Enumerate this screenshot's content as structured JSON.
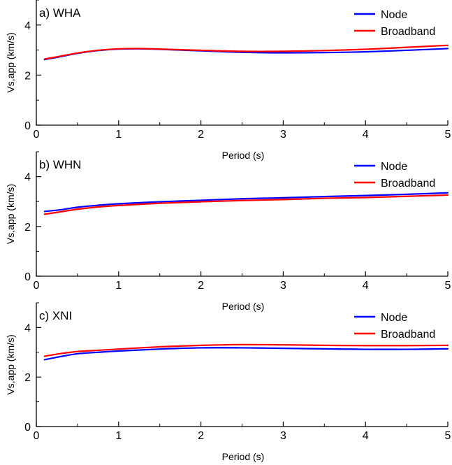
{
  "chart_data": [
    {
      "type": "line",
      "title": "a) WHA",
      "xlabel": "Period (s)",
      "ylabel": "Vs,app (km/s)",
      "xlim": [
        0,
        5
      ],
      "ylim": [
        0,
        5
      ],
      "xticks": [
        "0",
        "1",
        "2",
        "3",
        "4",
        "5"
      ],
      "yticks": [
        "0",
        "2",
        "4"
      ],
      "legend_position": "top-right",
      "series": [
        {
          "name": "Node",
          "color": "#0000ff",
          "x": [
            0.1,
            0.3,
            0.5,
            0.75,
            1.0,
            1.25,
            1.5,
            2.0,
            2.5,
            3.0,
            3.5,
            4.0,
            4.5,
            5.0
          ],
          "y": [
            2.62,
            2.74,
            2.87,
            2.98,
            3.04,
            3.05,
            3.03,
            2.97,
            2.91,
            2.89,
            2.9,
            2.93,
            2.99,
            3.06
          ]
        },
        {
          "name": "Broadband",
          "color": "#ff0000",
          "x": [
            0.1,
            0.3,
            0.5,
            0.75,
            1.0,
            1.25,
            1.5,
            2.0,
            2.5,
            3.0,
            3.5,
            4.0,
            4.5,
            5.0
          ],
          "y": [
            2.64,
            2.76,
            2.88,
            2.99,
            3.05,
            3.06,
            3.04,
            2.99,
            2.95,
            2.95,
            2.98,
            3.03,
            3.11,
            3.19
          ]
        }
      ]
    },
    {
      "type": "line",
      "title": "b) WHN",
      "xlabel": "Period (s)",
      "ylabel": "Vs,app (km/s)",
      "xlim": [
        0,
        5
      ],
      "ylim": [
        0,
        5
      ],
      "xticks": [
        "0",
        "1",
        "2",
        "3",
        "4",
        "5"
      ],
      "yticks": [
        "0",
        "2",
        "4"
      ],
      "legend_position": "top-right",
      "series": [
        {
          "name": "Node",
          "color": "#0000ff",
          "x": [
            0.1,
            0.3,
            0.5,
            0.75,
            1.0,
            1.5,
            2.0,
            2.5,
            3.0,
            3.5,
            4.0,
            4.5,
            5.0
          ],
          "y": [
            2.6,
            2.67,
            2.77,
            2.85,
            2.91,
            2.99,
            3.05,
            3.11,
            3.15,
            3.2,
            3.24,
            3.29,
            3.35
          ]
        },
        {
          "name": "Broadband",
          "color": "#ff0000",
          "x": [
            0.1,
            0.3,
            0.5,
            0.75,
            1.0,
            1.5,
            2.0,
            2.5,
            3.0,
            3.5,
            4.0,
            4.5,
            5.0
          ],
          "y": [
            2.49,
            2.59,
            2.69,
            2.78,
            2.84,
            2.93,
            2.99,
            3.04,
            3.08,
            3.13,
            3.16,
            3.21,
            3.26
          ]
        }
      ]
    },
    {
      "type": "line",
      "title": "c) XNI",
      "xlabel": "Period (s)",
      "ylabel": "Vs,app (km/s)",
      "xlim": [
        0,
        5
      ],
      "ylim": [
        0,
        5
      ],
      "xticks": [
        "0",
        "1",
        "2",
        "3",
        "4",
        "5"
      ],
      "yticks": [
        "0",
        "2",
        "4"
      ],
      "legend_position": "top-right",
      "series": [
        {
          "name": "Node",
          "color": "#0000ff",
          "x": [
            0.1,
            0.3,
            0.5,
            0.75,
            1.0,
            1.5,
            2.0,
            2.5,
            3.0,
            3.5,
            4.0,
            4.5,
            5.0
          ],
          "y": [
            2.7,
            2.83,
            2.94,
            3.0,
            3.05,
            3.13,
            3.18,
            3.18,
            3.16,
            3.14,
            3.12,
            3.12,
            3.14
          ]
        },
        {
          "name": "Broadband",
          "color": "#ff0000",
          "x": [
            0.1,
            0.3,
            0.5,
            0.75,
            1.0,
            1.5,
            2.0,
            2.5,
            3.0,
            3.5,
            4.0,
            4.5,
            5.0
          ],
          "y": [
            2.84,
            2.95,
            3.03,
            3.08,
            3.13,
            3.22,
            3.28,
            3.31,
            3.3,
            3.28,
            3.27,
            3.27,
            3.28
          ]
        }
      ]
    }
  ]
}
